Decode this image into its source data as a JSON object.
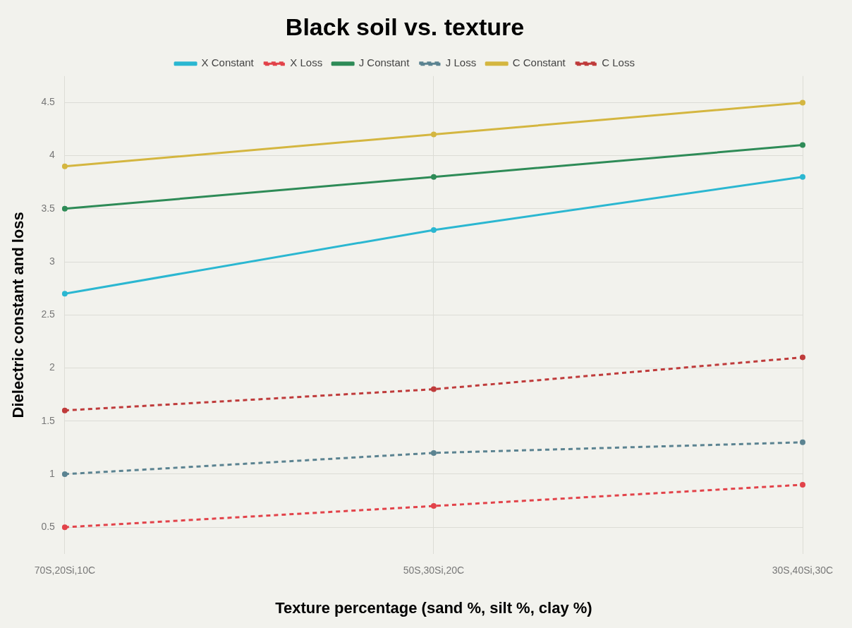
{
  "chart_data": {
    "type": "line",
    "title": "Black soil vs. texture",
    "xlabel": "Texture percentage (sand %, silt %, clay %)",
    "ylabel": "Dielectric constant and loss",
    "categories": [
      "70S,20Si,10C",
      "50S,30Si,20C",
      "30S,40Si,30C"
    ],
    "series": [
      {
        "name": "X Constant",
        "color": "#2bb7d1",
        "values": [
          2.7,
          3.3,
          3.8
        ],
        "line_style": "solid"
      },
      {
        "name": "X Loss",
        "color": "#e2434a",
        "values": [
          0.5,
          0.7,
          0.9
        ],
        "line_style": "dashed"
      },
      {
        "name": "J Constant",
        "color": "#2e8b57",
        "values": [
          3.5,
          3.8,
          4.1
        ],
        "line_style": "solid"
      },
      {
        "name": "J Loss",
        "color": "#5b8391",
        "values": [
          1.0,
          1.2,
          1.3
        ],
        "line_style": "dashed"
      },
      {
        "name": "C Constant",
        "color": "#d4b640",
        "values": [
          3.9,
          4.2,
          4.5
        ],
        "line_style": "solid"
      },
      {
        "name": "C Loss",
        "color": "#bf3b3b",
        "values": [
          1.6,
          1.8,
          2.1
        ],
        "line_style": "dashed"
      }
    ],
    "ylim": [
      0.25,
      4.75
    ],
    "yticks": [
      0.5,
      1,
      1.5,
      2,
      2.5,
      3,
      3.5,
      4,
      4.5
    ],
    "grid": true,
    "legend": "top",
    "marker": "circle"
  }
}
